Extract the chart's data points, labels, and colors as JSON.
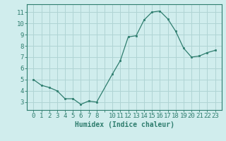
{
  "x": [
    0,
    1,
    2,
    3,
    4,
    5,
    6,
    7,
    8,
    10,
    11,
    12,
    13,
    14,
    15,
    16,
    17,
    18,
    19,
    20,
    21,
    22,
    23
  ],
  "y": [
    5.0,
    4.5,
    4.3,
    4.0,
    3.3,
    3.3,
    2.8,
    3.1,
    3.0,
    5.5,
    6.7,
    8.8,
    8.9,
    10.3,
    11.0,
    11.1,
    10.4,
    9.3,
    7.8,
    7.0,
    7.1,
    7.4,
    7.6
  ],
  "line_color": "#2e7d6e",
  "marker": "s",
  "marker_size": 2,
  "bg_color": "#d0eded",
  "grid_color": "#b0d4d4",
  "xlabel": "Humidex (Indice chaleur)",
  "ylim": [
    2.3,
    11.7
  ],
  "xlim": [
    -0.8,
    23.8
  ],
  "yticks": [
    3,
    4,
    5,
    6,
    7,
    8,
    9,
    10,
    11
  ],
  "xtick_labels": [
    "0",
    "1",
    "2",
    "3",
    "4",
    "5",
    "6",
    "7",
    "8",
    "",
    "10",
    "11",
    "12",
    "13",
    "14",
    "15",
    "16",
    "17",
    "18",
    "19",
    "20",
    "21",
    "22",
    "23"
  ],
  "xlabel_fontsize": 7,
  "tick_fontsize": 6.5
}
